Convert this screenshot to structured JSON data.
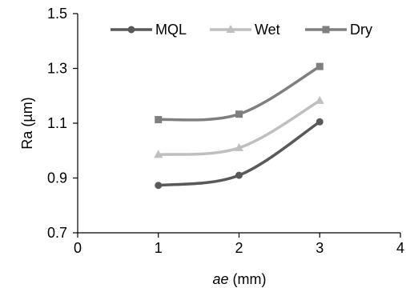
{
  "chart_data": {
    "type": "line",
    "x": [
      1,
      2,
      3
    ],
    "series": [
      {
        "name": "MQL",
        "values": [
          0.873,
          0.91,
          1.105
        ],
        "color": "#595959",
        "marker": "circle"
      },
      {
        "name": "Wet",
        "values": [
          0.985,
          1.01,
          1.182
        ],
        "color": "#bfbfbf",
        "marker": "triangle"
      },
      {
        "name": "Dry",
        "values": [
          1.113,
          1.133,
          1.307
        ],
        "color": "#7f7f7f",
        "marker": "square"
      }
    ],
    "xlim": [
      0,
      4
    ],
    "ylim": [
      0.7,
      1.5
    ],
    "xticks": [
      "0",
      "1",
      "2",
      "3",
      "4"
    ],
    "yticks": [
      "0.7",
      "0.9",
      "1.1",
      "1.3",
      "1.5"
    ],
    "xlabel_italic": "ae",
    "xlabel_rest": " (mm)",
    "ylabel": "Ra (µm)",
    "grid": false,
    "legend_position": "top"
  }
}
